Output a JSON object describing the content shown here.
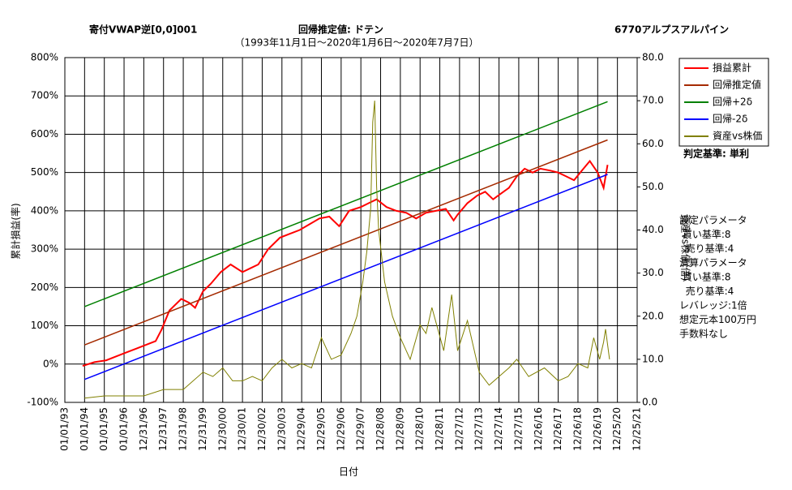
{
  "chart_data": {
    "type": "line",
    "title": "寄付VWAP逆[0,0]001",
    "title_center": "回帰推定値: ドテン",
    "title_right": "6770アルプスアルパイン",
    "subtitle": "（1993年11月1日～2020年1月6日～2020年7月7日）",
    "xlabel": "日付",
    "ylabel": "累計損益(率)",
    "y2label": "資産vs株価(倍)",
    "criterion": "判定基準: 単利",
    "notes": [
      "設定パラメータ",
      " 買い基準:8",
      "  売り基準:4",
      "清算パラメータ",
      " 買い基準:8",
      "  売り基準:4",
      "レバレッジ:1倍",
      "想定元本100万円",
      "手数料なし"
    ],
    "grid": true,
    "legend": "right-outside",
    "xlim": [
      1993,
      2022
    ],
    "xticks": [
      {
        "value": 1993,
        "label": "01/01/93"
      },
      {
        "value": 1994,
        "label": "01/01/94"
      },
      {
        "value": 1995,
        "label": "01/01/95"
      },
      {
        "value": 1996,
        "label": "01/01/96"
      },
      {
        "value": 1997,
        "label": "12/31/96"
      },
      {
        "value": 1998,
        "label": "12/31/97"
      },
      {
        "value": 1999,
        "label": "12/31/98"
      },
      {
        "value": 2000,
        "label": "12/31/99"
      },
      {
        "value": 2001,
        "label": "12/30/00"
      },
      {
        "value": 2002,
        "label": "12/30/01"
      },
      {
        "value": 2003,
        "label": "12/30/02"
      },
      {
        "value": 2004,
        "label": "12/30/03"
      },
      {
        "value": 2005,
        "label": "12/29/04"
      },
      {
        "value": 2006,
        "label": "12/29/05"
      },
      {
        "value": 2007,
        "label": "12/29/06"
      },
      {
        "value": 2008,
        "label": "12/29/07"
      },
      {
        "value": 2009,
        "label": "12/28/08"
      },
      {
        "value": 2010,
        "label": "12/28/09"
      },
      {
        "value": 2011,
        "label": "12/28/10"
      },
      {
        "value": 2012,
        "label": "12/28/11"
      },
      {
        "value": 2013,
        "label": "12/27/12"
      },
      {
        "value": 2014,
        "label": "12/27/13"
      },
      {
        "value": 2015,
        "label": "12/27/14"
      },
      {
        "value": 2016,
        "label": "12/27/15"
      },
      {
        "value": 2017,
        "label": "12/26/16"
      },
      {
        "value": 2018,
        "label": "12/26/17"
      },
      {
        "value": 2019,
        "label": "12/26/18"
      },
      {
        "value": 2020,
        "label": "12/26/19"
      },
      {
        "value": 2021,
        "label": "12/25/20"
      },
      {
        "value": 2022,
        "label": "12/25/21"
      }
    ],
    "ylim": [
      -100,
      800
    ],
    "yticks": [
      {
        "value": -100,
        "label": "-100%"
      },
      {
        "value": 0,
        "label": "0%"
      },
      {
        "value": 100,
        "label": "100%"
      },
      {
        "value": 200,
        "label": "200%"
      },
      {
        "value": 300,
        "label": "300%"
      },
      {
        "value": 400,
        "label": "400%"
      },
      {
        "value": 500,
        "label": "500%"
      },
      {
        "value": 600,
        "label": "600%"
      },
      {
        "value": 700,
        "label": "700%"
      },
      {
        "value": 800,
        "label": "800%"
      }
    ],
    "y2lim": [
      0,
      80
    ],
    "y2ticks": [
      {
        "value": 0,
        "label": "0.0"
      },
      {
        "value": 10,
        "label": "10.0"
      },
      {
        "value": 20,
        "label": "20.0"
      },
      {
        "value": 30,
        "label": "30.0"
      },
      {
        "value": 40,
        "label": "40.0"
      },
      {
        "value": 50,
        "label": "50.0"
      },
      {
        "value": 60,
        "label": "60.0"
      },
      {
        "value": 70,
        "label": "70.0"
      },
      {
        "value": 80,
        "label": "80.0"
      }
    ],
    "series": [
      {
        "name": "損益累計",
        "color": "#ff0000",
        "width": 2,
        "x": [
          1993.9,
          1994.5,
          1995.1,
          1995.6,
          1996.1,
          1996.6,
          1997.1,
          1997.6,
          1997.9,
          1998.3,
          1998.9,
          1999.3,
          1999.6,
          2000.0,
          2000.4,
          2000.9,
          2001.4,
          2002.0,
          2002.4,
          2002.8,
          2003.3,
          2003.9,
          2004.4,
          2004.9,
          2005.4,
          2005.9,
          2006.4,
          2006.9,
          2007.4,
          2008.0,
          2008.4,
          2008.8,
          2009.3,
          2009.8,
          2010.3,
          2010.8,
          2011.3,
          2011.8,
          2012.3,
          2012.7,
          2012.9,
          2013.4,
          2013.9,
          2014.3,
          2014.7,
          2015.1,
          2015.5,
          2015.9,
          2016.3,
          2016.7,
          2017.1,
          2017.6,
          2018.0,
          2018.4,
          2018.8,
          2019.2,
          2019.6,
          2020.0,
          2020.3,
          2020.5
        ],
        "values": [
          -5,
          5,
          10,
          20,
          30,
          40,
          50,
          60,
          90,
          140,
          170,
          160,
          147,
          190,
          210,
          240,
          260,
          240,
          250,
          260,
          300,
          330,
          340,
          350,
          365,
          380,
          385,
          360,
          400,
          410,
          420,
          430,
          410,
          400,
          395,
          380,
          395,
          400,
          405,
          375,
          390,
          420,
          440,
          450,
          430,
          445,
          460,
          490,
          510,
          500,
          510,
          505,
          500,
          490,
          480,
          505,
          530,
          500,
          460,
          520
        ]
      },
      {
        "name": "回帰推定値",
        "color": "#a52a00",
        "width": 1.5,
        "x": [
          1994,
          2020.5
        ],
        "values": [
          50,
          585
        ]
      },
      {
        "name": "回帰+2δ",
        "color": "#008000",
        "width": 1.5,
        "x": [
          1994,
          2020.5
        ],
        "values": [
          150,
          685
        ]
      },
      {
        "name": "回帰-2δ",
        "color": "#0000ff",
        "width": 1.5,
        "x": [
          1994,
          2020.5
        ],
        "values": [
          -40,
          495
        ]
      },
      {
        "name": "資産vs株価",
        "color": "#808000",
        "width": 1,
        "axis": "y2",
        "x": [
          1994,
          1995,
          1996,
          1997,
          1998,
          1999,
          2000,
          2000.5,
          2001,
          2001.5,
          2002,
          2002.5,
          2003,
          2003.5,
          2004,
          2004.5,
          2005,
          2005.5,
          2006,
          2006.5,
          2007,
          2007.5,
          2007.8,
          2008.1,
          2008.3,
          2008.5,
          2008.6,
          2008.7,
          2008.8,
          2008.9,
          2009.2,
          2009.6,
          2010,
          2010.5,
          2011,
          2011.3,
          2011.6,
          2012.2,
          2012.6,
          2012.9,
          2013.4,
          2014,
          2014.5,
          2015,
          2015.5,
          2015.9,
          2016.5,
          2017.3,
          2018,
          2018.5,
          2019,
          2019.5,
          2019.8,
          2020.1,
          2020.3,
          2020.4,
          2020.6
        ],
        "values": [
          1,
          1.5,
          1.5,
          1.5,
          3,
          3,
          7,
          6,
          8,
          5,
          5,
          6,
          5,
          8,
          10,
          8,
          9,
          8,
          15,
          10,
          11,
          16,
          20,
          28,
          35,
          45,
          65,
          70,
          50,
          40,
          28,
          20,
          15,
          10,
          18,
          16,
          22,
          12,
          25,
          12,
          19,
          7,
          4,
          6,
          8,
          10,
          6,
          8,
          5,
          6,
          9,
          8,
          15,
          10,
          14,
          17,
          10
        ]
      }
    ]
  }
}
